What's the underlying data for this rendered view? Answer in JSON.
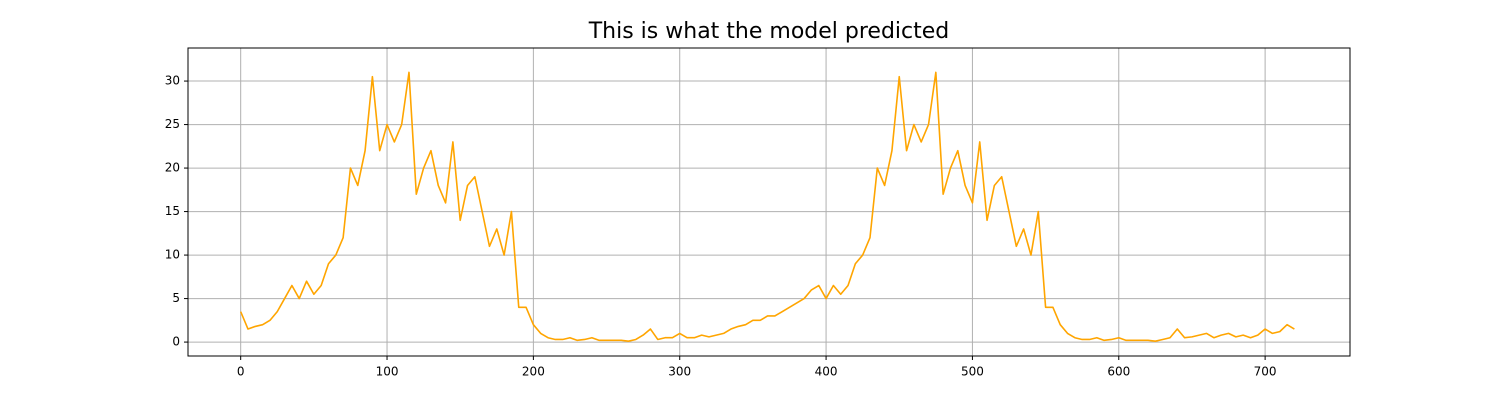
{
  "chart_data": {
    "type": "line",
    "title": "This is what the model predicted",
    "x": [
      0,
      5,
      10,
      15,
      20,
      25,
      30,
      35,
      40,
      45,
      50,
      55,
      60,
      65,
      70,
      75,
      80,
      85,
      90,
      95,
      100,
      105,
      110,
      115,
      120,
      125,
      130,
      135,
      140,
      145,
      150,
      155,
      160,
      165,
      170,
      175,
      180,
      185,
      190,
      195,
      200,
      205,
      210,
      215,
      220,
      225,
      230,
      235,
      240,
      245,
      250,
      255,
      260,
      265,
      270,
      275,
      280,
      285,
      290,
      295,
      300,
      305,
      310,
      315,
      320,
      325,
      330,
      335,
      340,
      345,
      350,
      355,
      360,
      365,
      370,
      375,
      380,
      385,
      390,
      395,
      400,
      405,
      410,
      415,
      420,
      425,
      430,
      435,
      440,
      445,
      450,
      455,
      460,
      465,
      470,
      475,
      480,
      485,
      490,
      495,
      500,
      505,
      510,
      515,
      520,
      525,
      530,
      535,
      540,
      545,
      550,
      555,
      560,
      565,
      570,
      575,
      580,
      585,
      590,
      595,
      600,
      605,
      610,
      615,
      620,
      625,
      630,
      635,
      640,
      645,
      650,
      655,
      660,
      665,
      670,
      675,
      680,
      685,
      690,
      695,
      700,
      705,
      710,
      715,
      720
    ],
    "series": [
      {
        "color": "#ffa500",
        "values": [
          3.5,
          1.5,
          1.8,
          2,
          2.5,
          3.5,
          5,
          6.5,
          5,
          7,
          5.5,
          6.5,
          9,
          10,
          12,
          20,
          18,
          22,
          30.5,
          22,
          25,
          23,
          25,
          31,
          17,
          20,
          22,
          18,
          16,
          23,
          14,
          18,
          19,
          15,
          11,
          13,
          10,
          15,
          4,
          4,
          2,
          1,
          0.5,
          0.3,
          0.3,
          0.5,
          0.2,
          0.3,
          0.5,
          0.2,
          0.2,
          0.2,
          0.2,
          0.1,
          0.3,
          0.8,
          1.5,
          0.3,
          0.5,
          0.5,
          1,
          0.5,
          0.5,
          0.8,
          0.6,
          0.8,
          1,
          1.5,
          1.8,
          2,
          2.5,
          2.5,
          3,
          3,
          3.5,
          4,
          4.5,
          5,
          6,
          6.5,
          5,
          6.5,
          5.5,
          6.5,
          9,
          10,
          12,
          20,
          18,
          22,
          30.5,
          22,
          25,
          23,
          25,
          31,
          17,
          20,
          22,
          18,
          16,
          23,
          14,
          18,
          19,
          15,
          11,
          13,
          10,
          15,
          4,
          4,
          2,
          1,
          0.5,
          0.3,
          0.3,
          0.5,
          0.2,
          0.3,
          0.5,
          0.2,
          0.2,
          0.2,
          0.2,
          0.1,
          0.3,
          0.5,
          1.5,
          0.5,
          0.6,
          0.8,
          1,
          0.5,
          0.8,
          1,
          0.6,
          0.8,
          0.5,
          0.8,
          1.5,
          1,
          1.2,
          2,
          1.5
        ]
      }
    ],
    "xlim": [
      -36,
      758
    ],
    "ylim": [
      -1.6,
      33.8
    ],
    "xticks": [
      0,
      100,
      200,
      300,
      400,
      500,
      600,
      700
    ],
    "yticks": [
      0,
      5,
      10,
      15,
      20,
      25,
      30
    ],
    "grid": true
  }
}
